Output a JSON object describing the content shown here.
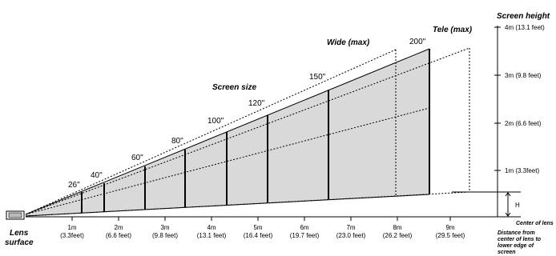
{
  "labels": {
    "screen_height_title": "Screen height",
    "wide": "Wide (max)",
    "tele": "Tele (max)",
    "screen_size": "Screen size",
    "lens_line1": "Lens",
    "lens_line2": "surface",
    "center_of_lens": "Center of lens",
    "h_marker": "H",
    "distance_note": [
      "Distance from",
      "center of lens to",
      "lower edge of",
      "screen"
    ]
  },
  "screen_sizes": [
    "26\"",
    "40\"",
    "60\"",
    "80\"",
    "100\"",
    "120\"",
    "150\"",
    "200\""
  ],
  "height_ticks": [
    {
      "label": "4m (13.1 feet)"
    },
    {
      "label": "3m (9.8 feet)"
    },
    {
      "label": "2m (6.6 feet)"
    },
    {
      "label": "1m (3.3feet)"
    }
  ],
  "distance_ticks": [
    {
      "m": "1m",
      "ft": "(3.3feet)"
    },
    {
      "m": "2m",
      "ft": "(6.6 feet)"
    },
    {
      "m": "3m",
      "ft": "(9.8 feet)"
    },
    {
      "m": "4m",
      "ft": "(13.1 feet)"
    },
    {
      "m": "5m",
      "ft": "(16.4 feet)"
    },
    {
      "m": "6m",
      "ft": "(19.7 feet)"
    },
    {
      "m": "7m",
      "ft": "(23.0 feet)"
    },
    {
      "m": "8m",
      "ft": "(26.2 feet)"
    },
    {
      "m": "9m",
      "ft": "(29.5 feet)"
    }
  ],
  "colors": {
    "fill": "#d9d9d9",
    "line": "#000000"
  }
}
